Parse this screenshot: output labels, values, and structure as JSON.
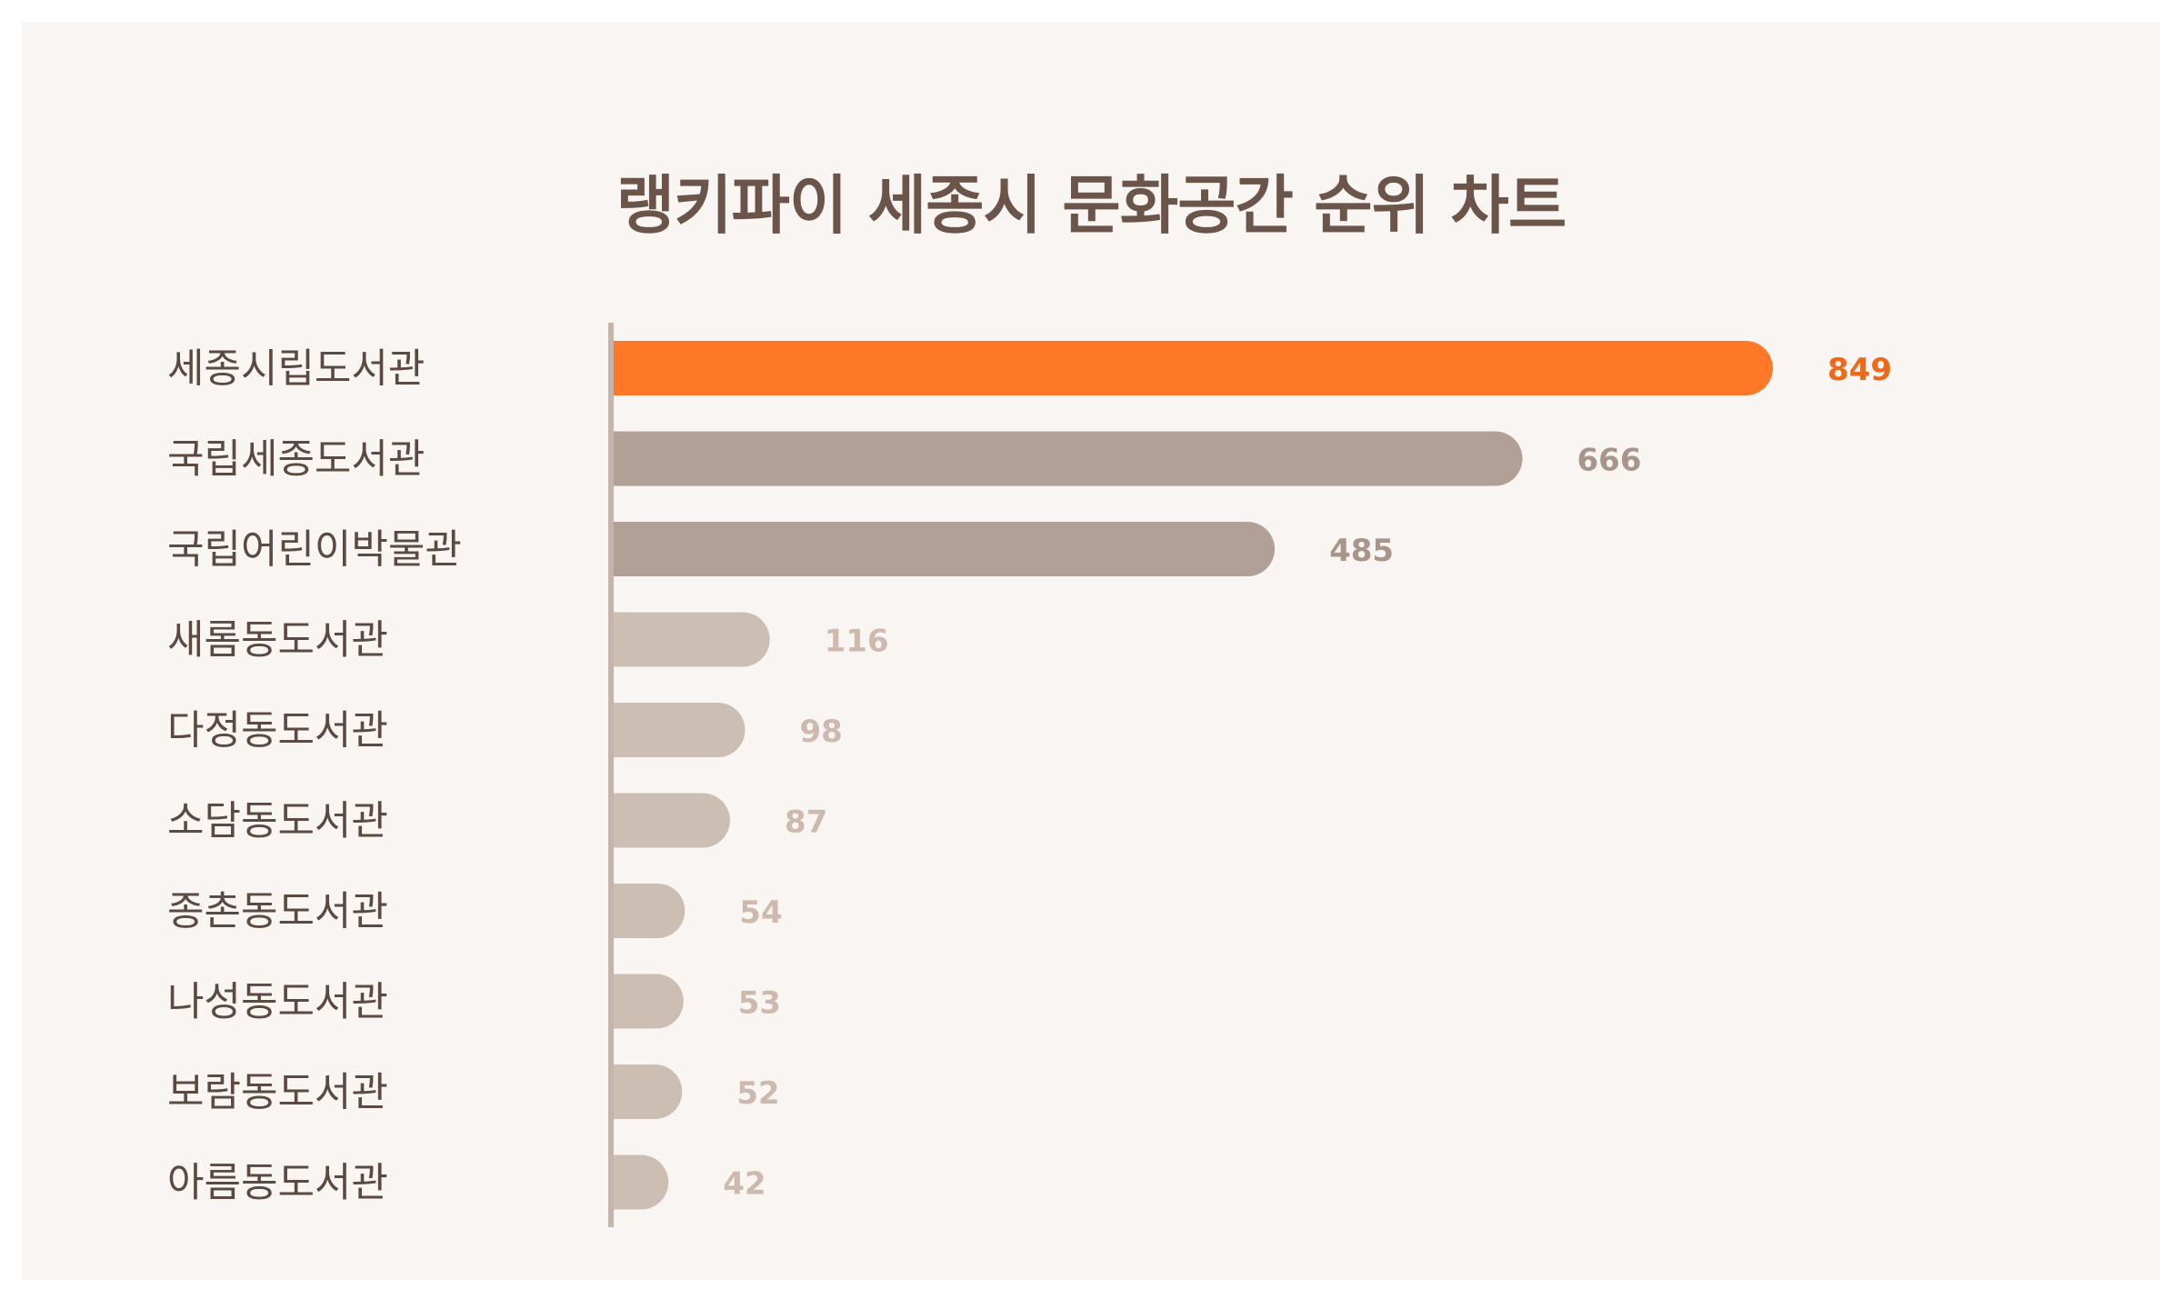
{
  "chart_data": {
    "type": "bar",
    "orientation": "horizontal",
    "title": "랭키파이 세종시 문화공간 순위 차트",
    "xlabel": "",
    "ylabel": "",
    "categories": [
      "세종시립도서관",
      "국립세종도서관",
      "국립어린이박물관",
      "새롬동도서관",
      "다정동도서관",
      "소담동도서관",
      "종촌동도서관",
      "나성동도서관",
      "보람동도서관",
      "아름동도서관"
    ],
    "values": [
      849,
      666,
      485,
      116,
      98,
      87,
      54,
      53,
      52,
      42
    ],
    "data_labels": [
      "849",
      "666",
      "485",
      "116",
      "98",
      "87",
      "54",
      "53",
      "52",
      "42"
    ],
    "xlim": [
      0,
      849
    ],
    "grid": false,
    "legend": "none",
    "colors": {
      "first": "#ff7827",
      "top3": "#b2a097",
      "rest": "#cdbeb4",
      "label_first": "#ee6a18",
      "label_top3": "#a8968c",
      "label_rest": "#cdb9ae",
      "category_text": "#5a4a42",
      "axis": "#c5b4aa"
    }
  }
}
